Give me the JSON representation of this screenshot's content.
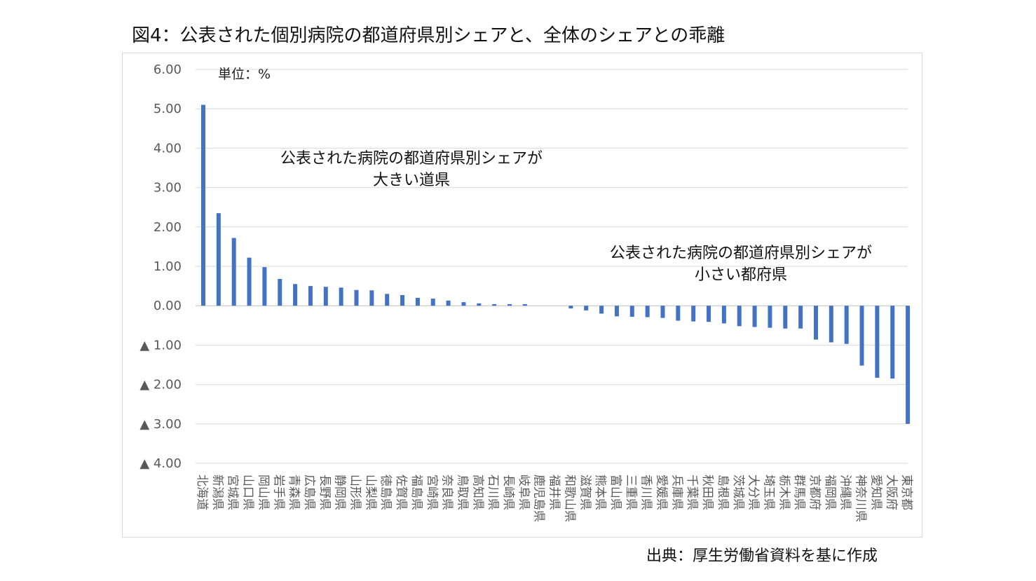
{
  "title": "図4：公表された個別病院の都道府県別シェアと、全体のシェアとの乖離",
  "source": "出典：厚生労働省資料を基に作成",
  "chart_data": {
    "type": "bar",
    "unit_label": "単位：%",
    "ylim": [
      -4,
      6
    ],
    "yticks": [
      6,
      5,
      4,
      3,
      2,
      1,
      0,
      -1,
      -2,
      -3,
      -4
    ],
    "ytick_labels": [
      "6.00",
      "5.00",
      "4.00",
      "3.00",
      "2.00",
      "1.00",
      "0.00",
      "▲ 1.00",
      "▲ 2.00",
      "▲ 3.00",
      "▲ 4.00"
    ],
    "grid": true,
    "bar_color": "#4472C4",
    "annotations": [
      {
        "lines": [
          "公表された病院の都道府県別シェアが",
          "大きい道県"
        ]
      },
      {
        "lines": [
          "公表された病院の都道府県別シェアが",
          "小さい都府県"
        ]
      }
    ],
    "categories": [
      "北海道",
      "新潟県",
      "宮城県",
      "山口県",
      "岡山県",
      "岩手県",
      "青森県",
      "広島県",
      "長野県",
      "静岡県",
      "山形県",
      "山梨県",
      "徳島県",
      "佐賀県",
      "福島県",
      "宮崎県",
      "奈良県",
      "鳥取県",
      "高知県",
      "石川県",
      "長崎県",
      "岐阜県",
      "鹿児島県",
      "福井県",
      "和歌山県",
      "滋賀県",
      "熊本県",
      "富山県",
      "三重県",
      "香川県",
      "愛媛県",
      "兵庫県",
      "千葉県",
      "秋田県",
      "島根県",
      "茨城県",
      "大分県",
      "埼玉県",
      "栃木県",
      "群馬県",
      "京都府",
      "福岡県",
      "沖縄県",
      "神奈川県",
      "愛知県",
      "大阪府",
      "東京都"
    ],
    "values": [
      5.1,
      2.35,
      1.72,
      1.22,
      0.98,
      0.68,
      0.55,
      0.5,
      0.48,
      0.46,
      0.4,
      0.39,
      0.3,
      0.27,
      0.2,
      0.18,
      0.13,
      0.09,
      0.06,
      0.04,
      0.04,
      0.04,
      0.0,
      0.0,
      -0.07,
      -0.12,
      -0.2,
      -0.27,
      -0.28,
      -0.29,
      -0.31,
      -0.38,
      -0.4,
      -0.41,
      -0.45,
      -0.52,
      -0.54,
      -0.56,
      -0.58,
      -0.58,
      -0.86,
      -0.93,
      -0.97,
      -1.52,
      -1.83,
      -1.85,
      -3.0
    ]
  }
}
